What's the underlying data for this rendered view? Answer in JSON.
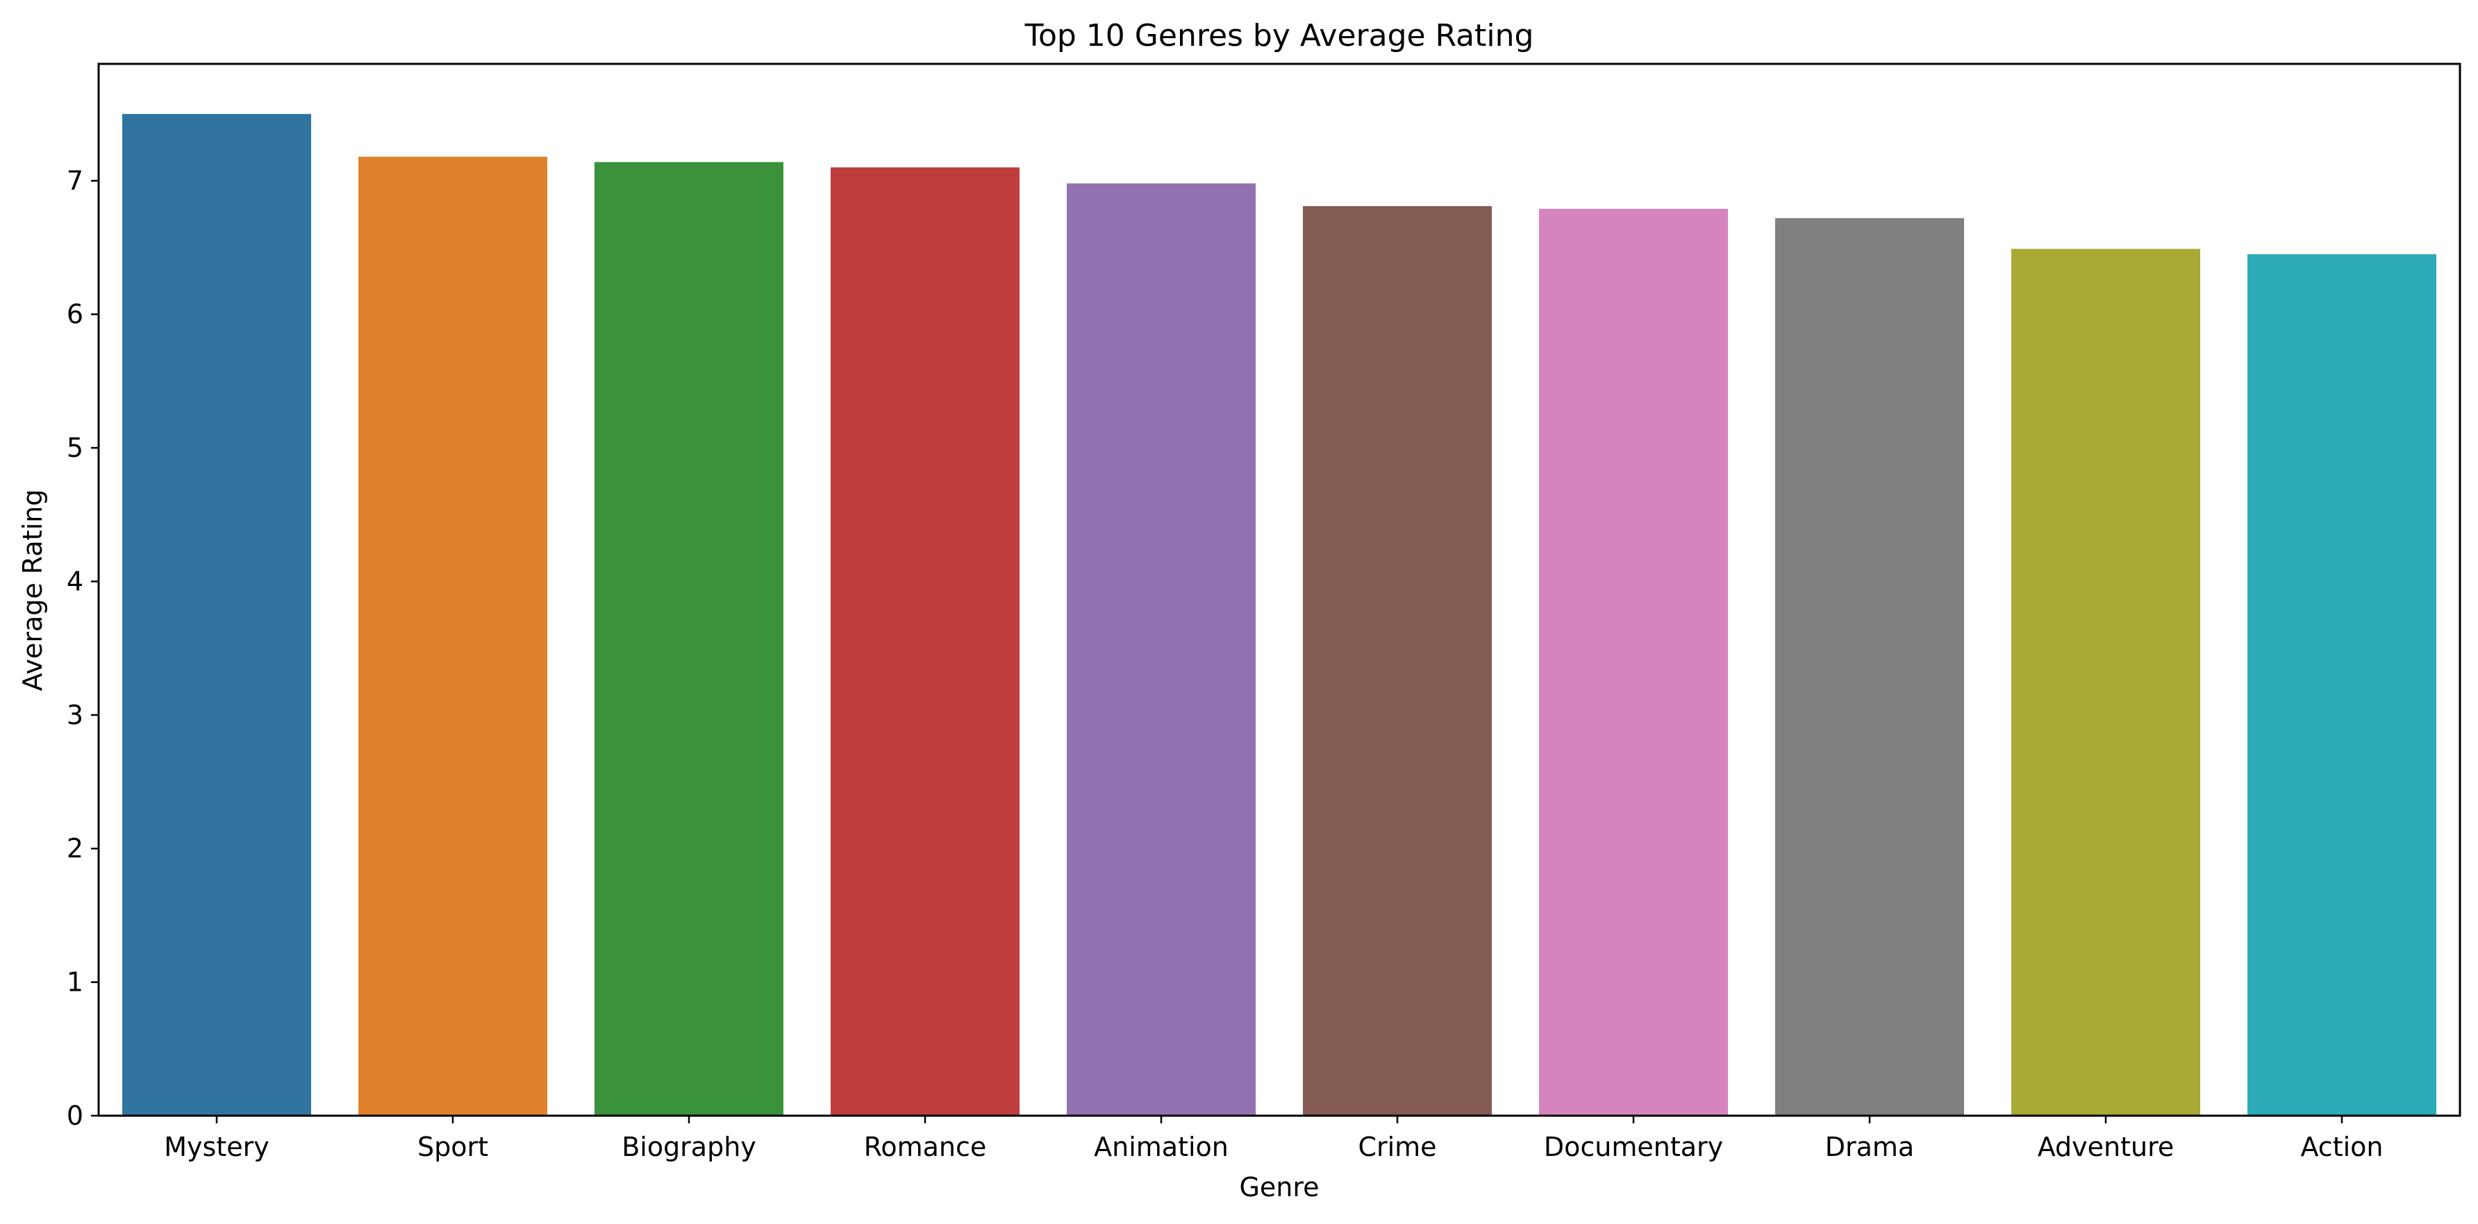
{
  "chart_data": {
    "type": "bar",
    "title": "Top 10 Genres by Average Rating",
    "xlabel": "Genre",
    "ylabel": "Average Rating",
    "categories": [
      "Mystery",
      "Sport",
      "Biography",
      "Romance",
      "Animation",
      "Crime",
      "Documentary",
      "Drama",
      "Adventure",
      "Action"
    ],
    "values": [
      7.5,
      7.18,
      7.14,
      7.1,
      6.98,
      6.81,
      6.79,
      6.72,
      6.49,
      6.45
    ],
    "colors": [
      "#3274a1",
      "#e1812c",
      "#3a923a",
      "#c03d3e",
      "#9372b2",
      "#845b53",
      "#d684bd",
      "#7f7f7f",
      "#a9aa35",
      "#2eabb8"
    ],
    "ylim": [
      0,
      7.875
    ],
    "yticks": [
      0,
      1,
      2,
      3,
      4,
      5,
      6,
      7
    ],
    "grid": false,
    "legend": "none"
  }
}
